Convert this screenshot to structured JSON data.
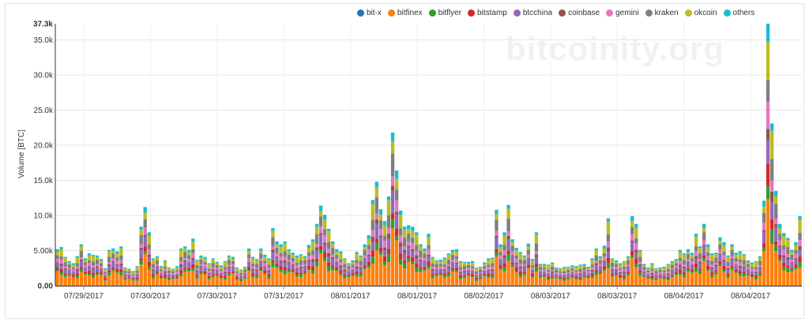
{
  "watermark": "bitcoinity.org",
  "legend": [
    {
      "name": "bit-x",
      "color": "#1f77b4",
      "icon": "circle-dot"
    },
    {
      "name": "bitfinex",
      "color": "#ff7f0e",
      "icon": "circle-dot"
    },
    {
      "name": "bitflyer",
      "color": "#2ca02c",
      "icon": "circle-dot"
    },
    {
      "name": "bitstamp",
      "color": "#d62728",
      "icon": "circle-dot"
    },
    {
      "name": "btcchina",
      "color": "#9467bd",
      "icon": "circle-dot"
    },
    {
      "name": "coinbase",
      "color": "#8c564b",
      "icon": "circle-dot"
    },
    {
      "name": "gemini",
      "color": "#e377c2",
      "icon": "circle-dot"
    },
    {
      "name": "kraken",
      "color": "#7f7f7f",
      "icon": "circle-dot"
    },
    {
      "name": "okcoin",
      "color": "#bcbd22",
      "icon": "circle-dot"
    },
    {
      "name": "others",
      "color": "#17becf",
      "icon": "circle-dot"
    }
  ],
  "chart_data": {
    "type": "bar",
    "stacked": true,
    "ylabel": "Volume [BTC]",
    "ylim": [
      0,
      37300
    ],
    "ymax_label": "37.3k",
    "yticks": [
      "0.00",
      "5.00k",
      "10.0k",
      "15.0k",
      "20.0k",
      "25.0k",
      "30.0k",
      "35.0k"
    ],
    "ytick_values": [
      0,
      5000,
      10000,
      15000,
      20000,
      25000,
      30000,
      35000
    ],
    "xtick_labels": [
      "07/29/2017",
      "07/30/2017",
      "07/30/2017",
      "07/31/2017",
      "08/01/2017",
      "08/01/2017",
      "08/02/2017",
      "08/03/2017",
      "08/03/2017",
      "08/04/2017",
      "08/04/2017"
    ],
    "grid": true,
    "legend_position": "top-right",
    "series_names": [
      "bit-x",
      "bitfinex",
      "bitflyer",
      "bitstamp",
      "btcchina",
      "coinbase",
      "gemini",
      "kraken",
      "okcoin",
      "others"
    ],
    "share": [
      0.0,
      0.34,
      0.06,
      0.06,
      0.12,
      0.04,
      0.08,
      0.12,
      0.12,
      0.06
    ],
    "totals": [
      5200,
      5500,
      4100,
      3500,
      3200,
      4200,
      5900,
      3900,
      4600,
      4400,
      4300,
      3800,
      2500,
      5100,
      5300,
      4900,
      5600,
      2600,
      2400,
      2100,
      2800,
      8400,
      11200,
      7600,
      3900,
      4200,
      2800,
      3600,
      2600,
      2400,
      2800,
      5300,
      5600,
      5100,
      6700,
      3700,
      4300,
      4100,
      3200,
      3900,
      3400,
      2900,
      3500,
      4300,
      4100,
      2600,
      2300,
      2700,
      5300,
      4100,
      3800,
      5300,
      4400,
      3900,
      8200,
      6300,
      5900,
      6300,
      5200,
      4700,
      4300,
      4500,
      4200,
      5800,
      6600,
      8800,
      11400,
      10100,
      8100,
      6300,
      5200,
      4900,
      3900,
      3200,
      3600,
      4800,
      4300,
      5900,
      7200,
      12200,
      14800,
      10900,
      9200,
      12700,
      21800,
      16400,
      10700,
      8400,
      8600,
      8400,
      7600,
      5900,
      5300,
      7400,
      4100,
      3600,
      3700,
      4000,
      4600,
      5100,
      5200,
      3500,
      3400,
      3400,
      3500,
      2600,
      2700,
      3300,
      3900,
      4000,
      10800,
      5900,
      7600,
      11500,
      6600,
      5400,
      4800,
      4300,
      6000,
      3800,
      7600,
      3100,
      3100,
      3000,
      3300,
      2600,
      2500,
      2700,
      2700,
      2900,
      2800,
      3000,
      3100,
      2700,
      3900,
      5300,
      4200,
      5700,
      9600,
      3900,
      3600,
      3200,
      3500,
      4200,
      9900,
      8800,
      5100,
      3100,
      2600,
      3200,
      2500,
      2600,
      2700,
      3100,
      3500,
      3800,
      5100,
      4600,
      5200,
      4700,
      7400,
      5600,
      8800,
      5900,
      4600,
      4700,
      6900,
      6200,
      4300,
      5900,
      4700,
      4900,
      4500,
      3600,
      3300,
      3500,
      4200,
      12100,
      37300,
      23100,
      13500,
      8800,
      7500,
      6800,
      5100,
      6200,
      9900
    ]
  }
}
